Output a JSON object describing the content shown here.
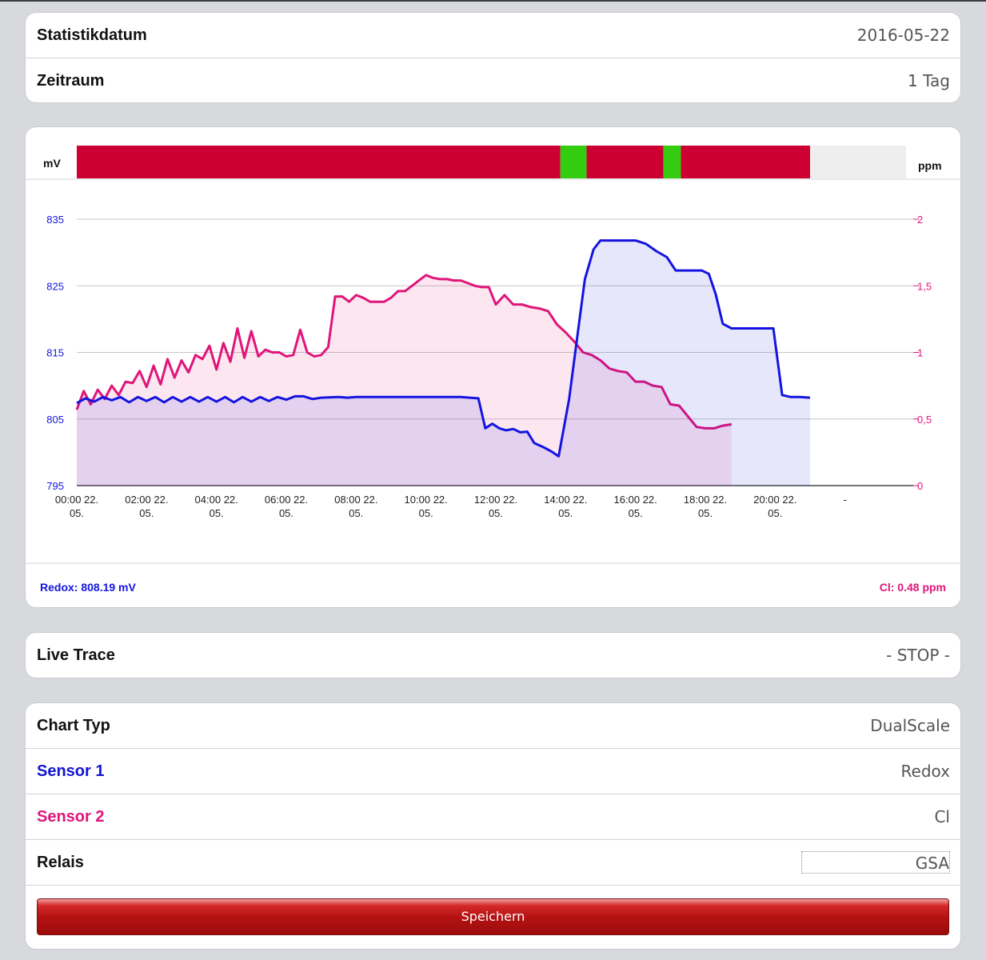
{
  "stats": {
    "date_label": "Statistikdatum",
    "date_value": "2016-05-22",
    "period_label": "Zeitraum",
    "period_value": "1 Tag"
  },
  "chart": {
    "left_unit": "mV",
    "right_unit": "ppm",
    "left_ticks": [
      "835",
      "825",
      "815",
      "805",
      "795"
    ],
    "right_ticks": [
      "2",
      "1,5",
      "1",
      "0,5",
      "0"
    ],
    "x_ticks": [
      [
        "00:00 22.",
        "05."
      ],
      [
        "02:00 22.",
        "05."
      ],
      [
        "04:00 22.",
        "05."
      ],
      [
        "06:00 22.",
        "05."
      ],
      [
        "08:00 22.",
        "05."
      ],
      [
        "10:00 22.",
        "05."
      ],
      [
        "12:00 22.",
        "05."
      ],
      [
        "14:00 22.",
        "05."
      ],
      [
        "16:00 22.",
        "05."
      ],
      [
        "18:00 22.",
        "05."
      ],
      [
        "20:00 22.",
        "05."
      ],
      [
        "-",
        ""
      ]
    ],
    "readout_left": "Redox: 808.19 mV",
    "readout_right": "Cl: 0.48 ppm",
    "colors": {
      "redox": "#1414e0",
      "cl": "#e0157a",
      "relay_off": "#cc0033",
      "relay_on": "#33cc11",
      "relay_none": "#eeeeee",
      "grid": "#c8c8c8"
    }
  },
  "chart_data": {
    "type": "line",
    "x_unit": "hour of 22.05.",
    "xlim": [
      0,
      24
    ],
    "relay_segments": [
      {
        "from": 0,
        "to": 13.85,
        "state": "off"
      },
      {
        "from": 13.85,
        "to": 14.6,
        "state": "on"
      },
      {
        "from": 14.6,
        "to": 16.8,
        "state": "off"
      },
      {
        "from": 16.8,
        "to": 17.3,
        "state": "on"
      },
      {
        "from": 17.3,
        "to": 21.0,
        "state": "off"
      },
      {
        "from": 21.0,
        "to": 23.75,
        "state": "none"
      }
    ],
    "series": [
      {
        "name": "Redox",
        "axis": "left",
        "unit": "mV",
        "ylim": [
          795,
          835
        ],
        "points": [
          [
            0.0,
            807.4
          ],
          [
            0.25,
            808.1
          ],
          [
            0.5,
            807.6
          ],
          [
            0.75,
            808.3
          ],
          [
            1.0,
            807.8
          ],
          [
            1.25,
            808.3
          ],
          [
            1.5,
            807.5
          ],
          [
            1.75,
            808.3
          ],
          [
            2.0,
            807.7
          ],
          [
            2.25,
            808.3
          ],
          [
            2.5,
            807.5
          ],
          [
            2.75,
            808.3
          ],
          [
            3.0,
            807.6
          ],
          [
            3.25,
            808.3
          ],
          [
            3.5,
            807.6
          ],
          [
            3.75,
            808.3
          ],
          [
            4.0,
            807.6
          ],
          [
            4.25,
            808.3
          ],
          [
            4.5,
            807.5
          ],
          [
            4.75,
            808.3
          ],
          [
            5.0,
            807.6
          ],
          [
            5.25,
            808.3
          ],
          [
            5.5,
            807.7
          ],
          [
            5.75,
            808.3
          ],
          [
            6.0,
            807.9
          ],
          [
            6.25,
            808.4
          ],
          [
            6.5,
            808.4
          ],
          [
            6.75,
            808.0
          ],
          [
            7.0,
            808.2
          ],
          [
            7.5,
            808.3
          ],
          [
            7.75,
            808.2
          ],
          [
            8.0,
            808.3
          ],
          [
            8.5,
            808.3
          ],
          [
            9.0,
            808.3
          ],
          [
            9.5,
            808.3
          ],
          [
            10.0,
            808.3
          ],
          [
            10.5,
            808.3
          ],
          [
            11.0,
            808.3
          ],
          [
            11.25,
            808.2
          ],
          [
            11.5,
            808.1
          ],
          [
            11.7,
            803.6
          ],
          [
            11.9,
            804.3
          ],
          [
            12.1,
            803.6
          ],
          [
            12.3,
            803.3
          ],
          [
            12.5,
            803.5
          ],
          [
            12.7,
            803.0
          ],
          [
            12.9,
            803.1
          ],
          [
            13.1,
            801.4
          ],
          [
            13.35,
            800.8
          ],
          [
            13.6,
            800.1
          ],
          [
            13.8,
            799.4
          ],
          [
            14.1,
            808.0
          ],
          [
            14.35,
            818.0
          ],
          [
            14.55,
            826.0
          ],
          [
            14.8,
            830.5
          ],
          [
            15.0,
            831.8
          ],
          [
            15.5,
            831.8
          ],
          [
            16.0,
            831.8
          ],
          [
            16.3,
            831.3
          ],
          [
            16.6,
            830.2
          ],
          [
            16.9,
            829.3
          ],
          [
            17.15,
            827.3
          ],
          [
            17.5,
            827.3
          ],
          [
            17.9,
            827.3
          ],
          [
            18.1,
            826.8
          ],
          [
            18.3,
            823.7
          ],
          [
            18.5,
            819.3
          ],
          [
            18.75,
            818.6
          ],
          [
            19.0,
            818.6
          ],
          [
            19.5,
            818.6
          ],
          [
            19.95,
            818.6
          ],
          [
            20.2,
            808.6
          ],
          [
            20.45,
            808.3
          ],
          [
            20.7,
            808.3
          ],
          [
            21.0,
            808.2
          ]
        ]
      },
      {
        "name": "Cl",
        "axis": "right",
        "unit": "ppm",
        "ylim": [
          0,
          2
        ],
        "points": [
          [
            0.0,
            0.57
          ],
          [
            0.2,
            0.71
          ],
          [
            0.4,
            0.61
          ],
          [
            0.6,
            0.72
          ],
          [
            0.8,
            0.65
          ],
          [
            1.0,
            0.75
          ],
          [
            1.2,
            0.68
          ],
          [
            1.4,
            0.78
          ],
          [
            1.6,
            0.77
          ],
          [
            1.8,
            0.86
          ],
          [
            2.0,
            0.74
          ],
          [
            2.2,
            0.9
          ],
          [
            2.4,
            0.76
          ],
          [
            2.6,
            0.95
          ],
          [
            2.8,
            0.81
          ],
          [
            3.0,
            0.94
          ],
          [
            3.2,
            0.85
          ],
          [
            3.4,
            0.98
          ],
          [
            3.6,
            0.95
          ],
          [
            3.8,
            1.05
          ],
          [
            4.0,
            0.87
          ],
          [
            4.2,
            1.07
          ],
          [
            4.4,
            0.93
          ],
          [
            4.6,
            1.18
          ],
          [
            4.8,
            0.96
          ],
          [
            5.0,
            1.16
          ],
          [
            5.2,
            0.97
          ],
          [
            5.4,
            1.02
          ],
          [
            5.6,
            1.0
          ],
          [
            5.8,
            1.0
          ],
          [
            6.0,
            0.97
          ],
          [
            6.2,
            0.98
          ],
          [
            6.4,
            1.17
          ],
          [
            6.6,
            1.0
          ],
          [
            6.8,
            0.97
          ],
          [
            7.0,
            0.98
          ],
          [
            7.2,
            1.04
          ],
          [
            7.4,
            1.42
          ],
          [
            7.6,
            1.42
          ],
          [
            7.8,
            1.38
          ],
          [
            8.0,
            1.43
          ],
          [
            8.2,
            1.41
          ],
          [
            8.4,
            1.38
          ],
          [
            8.6,
            1.38
          ],
          [
            8.8,
            1.38
          ],
          [
            9.0,
            1.41
          ],
          [
            9.2,
            1.46
          ],
          [
            9.4,
            1.46
          ],
          [
            9.6,
            1.5
          ],
          [
            9.8,
            1.54
          ],
          [
            10.0,
            1.58
          ],
          [
            10.2,
            1.56
          ],
          [
            10.4,
            1.55
          ],
          [
            10.6,
            1.55
          ],
          [
            10.8,
            1.54
          ],
          [
            11.0,
            1.54
          ],
          [
            11.2,
            1.52
          ],
          [
            11.4,
            1.5
          ],
          [
            11.6,
            1.49
          ],
          [
            11.8,
            1.49
          ],
          [
            12.0,
            1.36
          ],
          [
            12.25,
            1.43
          ],
          [
            12.5,
            1.36
          ],
          [
            12.75,
            1.36
          ],
          [
            13.0,
            1.34
          ],
          [
            13.25,
            1.33
          ],
          [
            13.5,
            1.31
          ],
          [
            13.75,
            1.21
          ],
          [
            14.0,
            1.15
          ],
          [
            14.25,
            1.08
          ],
          [
            14.5,
            1.0
          ],
          [
            14.75,
            0.98
          ],
          [
            15.0,
            0.94
          ],
          [
            15.25,
            0.88
          ],
          [
            15.5,
            0.86
          ],
          [
            15.75,
            0.85
          ],
          [
            16.0,
            0.78
          ],
          [
            16.25,
            0.78
          ],
          [
            16.5,
            0.75
          ],
          [
            16.75,
            0.74
          ],
          [
            17.0,
            0.61
          ],
          [
            17.25,
            0.6
          ],
          [
            17.5,
            0.52
          ],
          [
            17.75,
            0.44
          ],
          [
            18.0,
            0.43
          ],
          [
            18.25,
            0.43
          ],
          [
            18.5,
            0.45
          ],
          [
            18.75,
            0.46
          ]
        ]
      }
    ]
  },
  "live": {
    "label": "Live Trace",
    "value": "- STOP -"
  },
  "settings": {
    "chart_type_label": "Chart Typ",
    "chart_type_value": "DualScale",
    "sensor1_label": "Sensor 1",
    "sensor1_value": "Redox",
    "sensor2_label": "Sensor 2",
    "sensor2_value": "Cl",
    "relay_label": "Relais",
    "relay_value": "GSA",
    "save_label": "Speichern"
  }
}
